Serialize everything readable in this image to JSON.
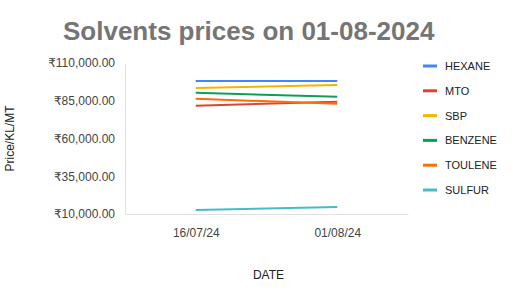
{
  "chart_data": {
    "type": "line",
    "title": "Solvents prices on 01-08-2024",
    "x_label": "DATE",
    "y_label": "Price/KL/MT",
    "categories": [
      "16/07/24",
      "01/08/24"
    ],
    "series": [
      {
        "name": "HEXANE",
        "color": "#4285f4",
        "values": [
          98000,
          98000
        ]
      },
      {
        "name": "MTO",
        "color": "#db4437",
        "values": [
          81700,
          84300
        ]
      },
      {
        "name": "SBP",
        "color": "#f4b400",
        "values": [
          93500,
          95500
        ]
      },
      {
        "name": "BENZENE",
        "color": "#0f9d58",
        "values": [
          90300,
          87600
        ]
      },
      {
        "name": "TOULENE",
        "color": "#ff6d01",
        "values": [
          86300,
          83000
        ]
      },
      {
        "name": "SULFUR",
        "color": "#46bdc6",
        "values": [
          12600,
          14600
        ]
      }
    ],
    "ylim": [
      10000,
      110000
    ],
    "yticks": [
      {
        "value": 10000,
        "label": "₹10,000.00"
      },
      {
        "value": 35000,
        "label": "₹35,000.00"
      },
      {
        "value": 60000,
        "label": "₹60,000.00"
      },
      {
        "value": 85000,
        "label": "₹85,000.00"
      },
      {
        "value": 110000,
        "label": "₹110,000.00"
      }
    ],
    "grid": false,
    "legend": "right"
  }
}
